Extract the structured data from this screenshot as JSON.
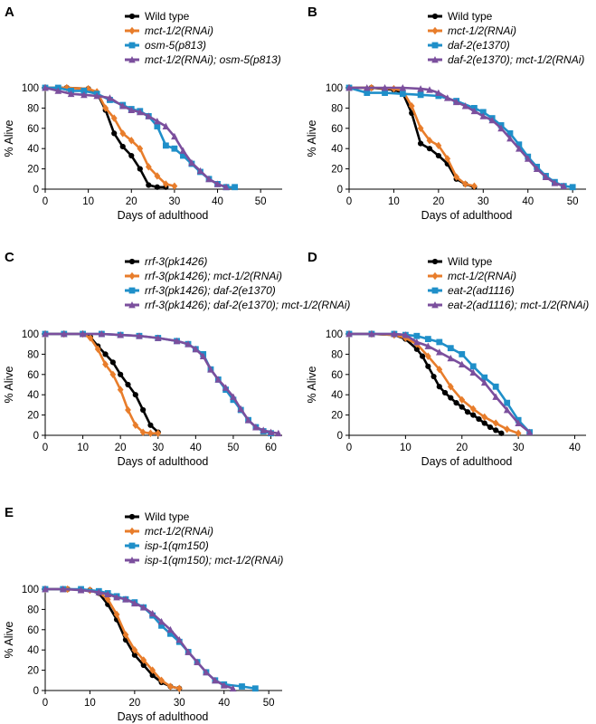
{
  "chart_data": [
    {
      "panel_label": "A",
      "type": "line",
      "xlabel": "Days of adulthood",
      "ylabel": "% Alive",
      "xlim": [
        0,
        55
      ],
      "ylim": [
        0,
        100
      ],
      "xticks": [
        0,
        10,
        20,
        30,
        40,
        50
      ],
      "yticks": [
        0,
        20,
        40,
        60,
        80,
        100
      ],
      "series": [
        {
          "name": "Wild type",
          "color": "#000000",
          "marker": "circle",
          "x": [
            0,
            5,
            10,
            12,
            14,
            16,
            18,
            20,
            22,
            24,
            26,
            28
          ],
          "y": [
            100,
            100,
            99,
            95,
            78,
            55,
            42,
            33,
            20,
            4,
            2,
            2
          ]
        },
        {
          "name": "mct-1/2(RNAi)",
          "color": "#e87d2b",
          "marker": "diamond",
          "x": [
            0,
            5,
            10,
            12,
            14,
            16,
            18,
            20,
            22,
            24,
            26,
            28,
            30
          ],
          "y": [
            100,
            100,
            99,
            96,
            80,
            70,
            55,
            48,
            40,
            22,
            13,
            5,
            3
          ]
        },
        {
          "name": "osm-5(p813)",
          "color": "#1f8fc9",
          "marker": "square",
          "x": [
            0,
            3,
            6,
            9,
            12,
            15,
            18,
            20,
            22,
            24,
            26,
            28,
            30,
            32,
            34,
            36,
            38,
            40,
            42,
            44
          ],
          "y": [
            100,
            100,
            97,
            97,
            94,
            88,
            83,
            79,
            77,
            72,
            62,
            43,
            40,
            33,
            25,
            17,
            10,
            5,
            2,
            2
          ]
        },
        {
          "name": "mct-1/2(RNAi); osm-5(p813)",
          "color": "#7b4f9d",
          "marker": "triangle",
          "x": [
            0,
            3,
            6,
            9,
            12,
            15,
            18,
            20,
            22,
            24,
            26,
            28,
            30,
            32,
            34,
            36,
            38,
            40,
            42
          ],
          "y": [
            100,
            97,
            94,
            93,
            92,
            90,
            82,
            78,
            76,
            72,
            67,
            62,
            52,
            38,
            26,
            18,
            10,
            5,
            2
          ]
        }
      ]
    },
    {
      "panel_label": "B",
      "type": "line",
      "xlabel": "Days of adulthood",
      "ylabel": "% Alive",
      "xlim": [
        0,
        53
      ],
      "ylim": [
        0,
        100
      ],
      "xticks": [
        0,
        10,
        20,
        30,
        40,
        50
      ],
      "yticks": [
        0,
        20,
        40,
        60,
        80,
        100
      ],
      "series": [
        {
          "name": "Wild type",
          "color": "#000000",
          "marker": "circle",
          "x": [
            0,
            5,
            10,
            12,
            14,
            16,
            18,
            20,
            22,
            24,
            26,
            28
          ],
          "y": [
            100,
            100,
            98,
            95,
            75,
            45,
            40,
            33,
            25,
            10,
            5,
            2
          ]
        },
        {
          "name": "mct-1/2(RNAi)",
          "color": "#e87d2b",
          "marker": "diamond",
          "x": [
            0,
            5,
            10,
            12,
            14,
            16,
            18,
            20,
            22,
            24,
            26,
            28
          ],
          "y": [
            100,
            100,
            99,
            97,
            82,
            60,
            48,
            43,
            30,
            12,
            5,
            3
          ]
        },
        {
          "name": "daf-2(e1370)",
          "color": "#1f8fc9",
          "marker": "square",
          "x": [
            0,
            4,
            8,
            12,
            16,
            20,
            24,
            28,
            30,
            32,
            34,
            36,
            38,
            40,
            42,
            44,
            46,
            48,
            50
          ],
          "y": [
            100,
            95,
            95,
            94,
            93,
            92,
            87,
            80,
            76,
            70,
            63,
            55,
            44,
            32,
            22,
            13,
            7,
            3,
            2
          ]
        },
        {
          "name": "daf-2(e1370); mct-1/2(RNAi)",
          "color": "#7b4f9d",
          "marker": "triangle",
          "x": [
            0,
            4,
            8,
            12,
            16,
            18,
            20,
            22,
            24,
            26,
            28,
            30,
            32,
            34,
            36,
            38,
            40,
            42,
            44,
            46,
            48
          ],
          "y": [
            100,
            100,
            100,
            100,
            99,
            98,
            95,
            90,
            86,
            82,
            77,
            72,
            68,
            60,
            50,
            40,
            30,
            20,
            12,
            6,
            3
          ]
        }
      ]
    },
    {
      "panel_label": "C",
      "type": "line",
      "xlabel": "Days of adulthood",
      "ylabel": "% Alive",
      "xlim": [
        0,
        63
      ],
      "ylim": [
        0,
        100
      ],
      "xticks": [
        0,
        10,
        20,
        30,
        40,
        50,
        60
      ],
      "yticks": [
        0,
        20,
        40,
        60,
        80,
        100
      ],
      "series": [
        {
          "name": "rrf-3(pk1426)",
          "color": "#000000",
          "marker": "circle",
          "x": [
            0,
            5,
            10,
            12,
            14,
            16,
            18,
            20,
            22,
            24,
            26,
            28,
            30
          ],
          "y": [
            100,
            100,
            100,
            97,
            88,
            80,
            72,
            60,
            50,
            40,
            25,
            10,
            3
          ]
        },
        {
          "name": "rrf-3(pk1426); mct-1/2(RNAi)",
          "color": "#e87d2b",
          "marker": "diamond",
          "x": [
            0,
            5,
            10,
            12,
            14,
            16,
            18,
            20,
            22,
            24,
            26,
            28,
            30
          ],
          "y": [
            100,
            100,
            100,
            96,
            85,
            70,
            60,
            45,
            25,
            10,
            3,
            2,
            2
          ]
        },
        {
          "name": "rrf-3(pk1426); daf-2(e1370)",
          "color": "#1f8fc9",
          "marker": "square",
          "x": [
            0,
            5,
            10,
            15,
            20,
            25,
            30,
            35,
            38,
            40,
            42,
            44,
            46,
            48,
            50,
            52,
            54,
            56,
            58,
            60
          ],
          "y": [
            100,
            100,
            100,
            100,
            99,
            98,
            96,
            93,
            90,
            85,
            80,
            65,
            55,
            45,
            35,
            25,
            15,
            8,
            4,
            2
          ]
        },
        {
          "name": "rrf-3(pk1426); daf-2(e1370); mct-1/2(RNAi)",
          "color": "#7b4f9d",
          "marker": "triangle",
          "x": [
            0,
            5,
            10,
            15,
            20,
            25,
            30,
            35,
            38,
            40,
            42,
            44,
            46,
            48,
            50,
            52,
            54,
            56,
            58,
            60,
            62
          ],
          "y": [
            100,
            100,
            100,
            100,
            99,
            98,
            96,
            93,
            90,
            85,
            78,
            65,
            55,
            47,
            38,
            26,
            15,
            8,
            5,
            3,
            2
          ]
        }
      ]
    },
    {
      "panel_label": "D",
      "type": "line",
      "xlabel": "Days of adulthood",
      "ylabel": "% Alive",
      "xlim": [
        0,
        42
      ],
      "ylim": [
        0,
        100
      ],
      "xticks": [
        0,
        10,
        20,
        30,
        40
      ],
      "yticks": [
        0,
        20,
        40,
        60,
        80,
        100
      ],
      "series": [
        {
          "name": "Wild type",
          "color": "#000000",
          "marker": "circle",
          "x": [
            0,
            4,
            8,
            10,
            12,
            13,
            14,
            15,
            16,
            17,
            18,
            19,
            20,
            21,
            22,
            23,
            24,
            25,
            26,
            27
          ],
          "y": [
            100,
            100,
            99,
            95,
            85,
            78,
            68,
            58,
            48,
            42,
            37,
            32,
            28,
            23,
            20,
            16,
            12,
            8,
            5,
            2
          ]
        },
        {
          "name": "mct-1/2(RNAi)",
          "color": "#e87d2b",
          "marker": "diamond",
          "x": [
            0,
            4,
            8,
            10,
            12,
            14,
            16,
            18,
            20,
            22,
            24,
            26,
            28,
            30
          ],
          "y": [
            100,
            100,
            99,
            96,
            90,
            78,
            65,
            48,
            35,
            26,
            18,
            12,
            6,
            2
          ]
        },
        {
          "name": "eat-2(ad1116)",
          "color": "#1f8fc9",
          "marker": "square",
          "x": [
            0,
            4,
            8,
            10,
            12,
            14,
            16,
            18,
            20,
            22,
            24,
            26,
            28,
            30,
            32
          ],
          "y": [
            100,
            100,
            100,
            99,
            98,
            95,
            92,
            86,
            80,
            68,
            57,
            48,
            32,
            15,
            3
          ]
        },
        {
          "name": "eat-2(ad1116); mct-1/2(RNAi)",
          "color": "#7b4f9d",
          "marker": "triangle",
          "x": [
            0,
            4,
            8,
            10,
            12,
            14,
            16,
            18,
            20,
            22,
            24,
            26,
            28,
            30,
            32
          ],
          "y": [
            100,
            100,
            100,
            99,
            92,
            88,
            82,
            76,
            70,
            62,
            52,
            38,
            25,
            12,
            3
          ]
        }
      ]
    },
    {
      "panel_label": "E",
      "type": "line",
      "xlabel": "Days of adulthood",
      "ylabel": "% Alive",
      "xlim": [
        0,
        53
      ],
      "ylim": [
        0,
        100
      ],
      "xticks": [
        0,
        10,
        20,
        30,
        40,
        50
      ],
      "yticks": [
        0,
        20,
        40,
        60,
        80,
        100
      ],
      "series": [
        {
          "name": "Wild type",
          "color": "#000000",
          "marker": "circle",
          "x": [
            0,
            5,
            10,
            12,
            14,
            16,
            18,
            20,
            22,
            24,
            26,
            28,
            30
          ],
          "y": [
            100,
            100,
            99,
            96,
            85,
            70,
            50,
            35,
            25,
            15,
            8,
            4,
            2
          ]
        },
        {
          "name": "mct-1/2(RNAi)",
          "color": "#e87d2b",
          "marker": "diamond",
          "x": [
            0,
            5,
            10,
            12,
            14,
            16,
            18,
            20,
            22,
            24,
            26,
            28,
            30
          ],
          "y": [
            100,
            100,
            99,
            97,
            90,
            75,
            55,
            40,
            30,
            20,
            10,
            4,
            2
          ]
        },
        {
          "name": "isp-1(qm150)",
          "color": "#1f8fc9",
          "marker": "square",
          "x": [
            0,
            4,
            8,
            12,
            14,
            16,
            18,
            20,
            22,
            24,
            26,
            28,
            30,
            32,
            34,
            36,
            38,
            40,
            44,
            47
          ],
          "y": [
            100,
            100,
            100,
            98,
            96,
            93,
            90,
            87,
            82,
            74,
            64,
            56,
            48,
            38,
            28,
            18,
            10,
            6,
            4,
            2
          ]
        },
        {
          "name": "isp-1(qm150); mct-1/2(RNAi)",
          "color": "#7b4f9d",
          "marker": "triangle",
          "x": [
            0,
            4,
            8,
            12,
            14,
            16,
            18,
            20,
            22,
            24,
            26,
            28,
            30,
            32,
            34,
            36,
            38,
            40,
            42
          ],
          "y": [
            100,
            100,
            99,
            97,
            95,
            92,
            90,
            86,
            82,
            76,
            68,
            60,
            50,
            38,
            28,
            18,
            10,
            5,
            2
          ]
        }
      ]
    }
  ]
}
